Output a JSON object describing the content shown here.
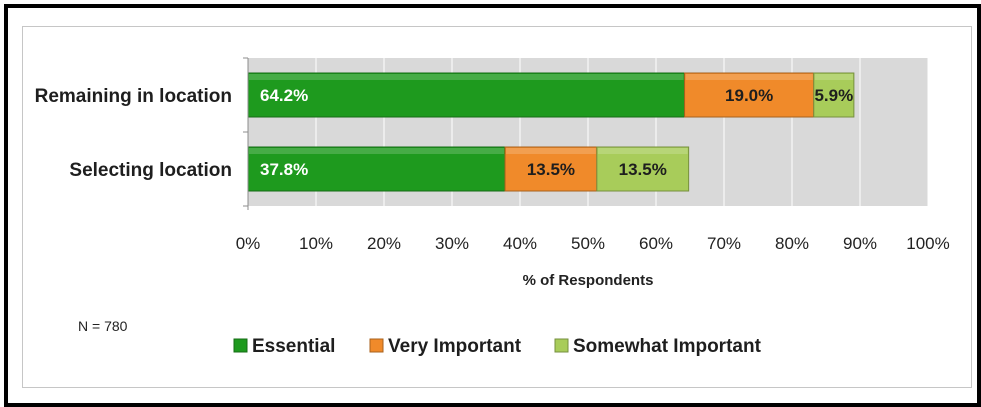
{
  "chart_data": {
    "type": "bar",
    "orientation": "horizontal",
    "stacked": true,
    "categories": [
      "Remaining in location",
      "Selecting location"
    ],
    "series": [
      {
        "name": "Essential",
        "values": [
          64.2,
          37.8
        ],
        "labels": [
          "64.2%",
          "37.8%"
        ],
        "color": "#1e9a1e"
      },
      {
        "name": "Very Important",
        "values": [
          19.0,
          13.5
        ],
        "labels": [
          "19.0%",
          "13.5%"
        ],
        "color": "#f08a2a"
      },
      {
        "name": "Somewhat Important",
        "values": [
          5.9,
          13.5
        ],
        "labels": [
          "5.9%",
          "13.5%"
        ],
        "color": "#a8cc5a"
      }
    ],
    "xlim": [
      0,
      100
    ],
    "x_ticks": [
      "0%",
      "10%",
      "20%",
      "30%",
      "40%",
      "50%",
      "60%",
      "70%",
      "80%",
      "90%",
      "100%"
    ],
    "xlabel": "% of Respondents",
    "ylabel": "",
    "grid": true,
    "legend_position": "bottom",
    "annotation": "N =  780"
  }
}
